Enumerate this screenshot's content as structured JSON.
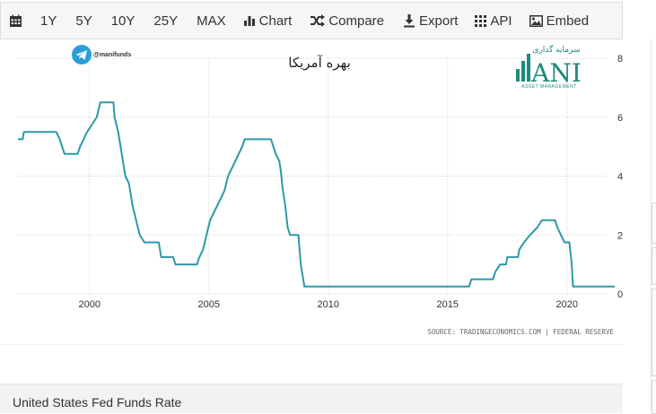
{
  "toolbar": {
    "ranges": [
      "1Y",
      "5Y",
      "10Y",
      "25Y",
      "MAX"
    ],
    "chart_label": "Chart",
    "compare_label": "Compare",
    "export_label": "Export",
    "api_label": "API",
    "embed_label": "Embed"
  },
  "overlay": {
    "telegram_handle": "@manifunds",
    "persian_title": "بهره آمریکا",
    "logo_top": "سرمایه گذاری",
    "logo_word": "ANI",
    "logo_sub": "ASSET MANAGEMENT"
  },
  "source_text": "SOURCE: TRADINGECONOMICS.COM | FEDERAL RESERVE",
  "footer_title": "United States Fed Funds Rate",
  "colors": {
    "line": "#2a9aa7",
    "grid": "#cfcfcf",
    "axis_text": "#333333",
    "logo": "#1f8a7a"
  },
  "chart_data": {
    "type": "line",
    "title": "",
    "xlabel": "",
    "ylabel": "",
    "grid": true,
    "y_axis_side": "right",
    "xlim": [
      1997.0,
      2022.0
    ],
    "ylim": [
      0,
      8
    ],
    "x_ticks": [
      2000,
      2005,
      2010,
      2015,
      2020
    ],
    "x_tick_labels": [
      "2000",
      "2005",
      "2010",
      "2015",
      "2020"
    ],
    "y_ticks": [
      0,
      2,
      4,
      6,
      8
    ],
    "y_tick_labels": [
      "0",
      "2",
      "4",
      "6",
      "8"
    ],
    "series": [
      {
        "x": [
          1997.0,
          1997.2,
          1997.25,
          1998.6,
          1998.75,
          1998.85,
          1998.95,
          1999.5,
          1999.6,
          1999.75,
          1999.9,
          2000.1,
          2000.3,
          2000.45,
          2001.0,
          2001.05,
          2001.2,
          2001.3,
          2001.4,
          2001.5,
          2001.65,
          2001.8,
          2001.95,
          2002.1,
          2002.3,
          2002.9,
          2003.0,
          2003.5,
          2003.6,
          2004.5,
          2004.6,
          2004.75,
          2004.9,
          2005.05,
          2005.2,
          2005.35,
          2005.5,
          2005.65,
          2005.8,
          2005.95,
          2006.1,
          2006.25,
          2006.4,
          2006.5,
          2007.6,
          2007.7,
          2007.8,
          2007.95,
          2008.0,
          2008.1,
          2008.2,
          2008.3,
          2008.4,
          2008.75,
          2008.85,
          2008.95,
          2009.0,
          2015.9,
          2016.0,
          2016.9,
          2017.0,
          2017.2,
          2017.45,
          2017.5,
          2017.95,
          2018.0,
          2018.2,
          2018.45,
          2018.75,
          2018.95,
          2019.5,
          2019.6,
          2019.75,
          2019.9,
          2020.1,
          2020.2,
          2020.25,
          2022.0
        ],
        "values": [
          5.25,
          5.25,
          5.5,
          5.5,
          5.25,
          5.0,
          4.75,
          4.75,
          5.0,
          5.25,
          5.5,
          5.75,
          6.0,
          6.5,
          6.5,
          6.0,
          5.5,
          5.0,
          4.5,
          4.0,
          3.75,
          3.0,
          2.5,
          2.0,
          1.75,
          1.75,
          1.25,
          1.25,
          1.0,
          1.0,
          1.25,
          1.5,
          2.0,
          2.5,
          2.75,
          3.0,
          3.25,
          3.5,
          4.0,
          4.25,
          4.5,
          4.75,
          5.0,
          5.25,
          5.25,
          5.0,
          4.75,
          4.5,
          4.25,
          3.5,
          3.0,
          2.25,
          2.0,
          2.0,
          1.0,
          0.5,
          0.25,
          0.25,
          0.5,
          0.5,
          0.75,
          1.0,
          1.0,
          1.25,
          1.25,
          1.5,
          1.75,
          2.0,
          2.25,
          2.5,
          2.5,
          2.25,
          2.0,
          1.75,
          1.75,
          1.0,
          0.25,
          0.25
        ]
      }
    ]
  }
}
